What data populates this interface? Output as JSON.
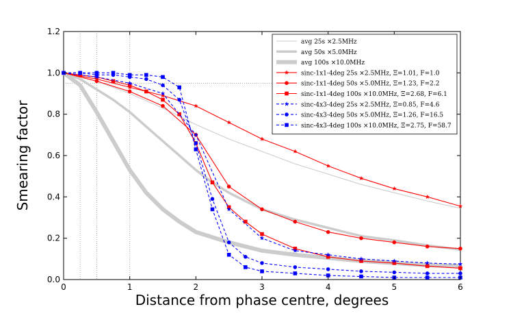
{
  "chart_data": {
    "type": "line",
    "title": "",
    "xlabel": "Distance from phase centre, degrees",
    "ylabel": "Smearing factor",
    "xlim": [
      0,
      6
    ],
    "ylim": [
      0,
      1.2
    ],
    "xticks": [
      "0",
      "1",
      "2",
      "3",
      "4",
      "5",
      "6"
    ],
    "yticks": [
      "0.0",
      "0.2",
      "0.4",
      "0.6",
      "0.8",
      "1.0",
      "1.2"
    ],
    "reference_lines": {
      "vertical_x": [
        0.25,
        0.5,
        1.0
      ],
      "horizontal_y": 0.95
    },
    "legend_position": "top-right",
    "series": [
      {
        "name": "avg 25s ×2.5MHz",
        "color": "#cccccc",
        "style": "solid",
        "marker": "none",
        "width": "thin",
        "x": [
          0,
          0.5,
          1,
          1.5,
          2,
          2.5,
          3,
          3.5,
          4,
          4.5,
          5,
          5.5,
          6
        ],
        "y": [
          1.0,
          0.96,
          0.9,
          0.83,
          0.75,
          0.68,
          0.62,
          0.56,
          0.51,
          0.46,
          0.42,
          0.38,
          0.345
        ]
      },
      {
        "name": "avg 50s ×5.0MHz",
        "color": "#cccccc",
        "style": "solid",
        "marker": "none",
        "width": "medium",
        "x": [
          0,
          0.25,
          0.5,
          0.75,
          1,
          1.25,
          1.5,
          1.75,
          2,
          2.25,
          2.5,
          2.75,
          3,
          3.5,
          4,
          4.5,
          5,
          5.5,
          6
        ],
        "y": [
          1.0,
          0.97,
          0.92,
          0.87,
          0.81,
          0.74,
          0.67,
          0.6,
          0.53,
          0.47,
          0.42,
          0.38,
          0.34,
          0.29,
          0.25,
          0.21,
          0.19,
          0.165,
          0.145
        ]
      },
      {
        "name": "avg 100s ×10.0MHz",
        "color": "#cccccc",
        "style": "solid",
        "marker": "none",
        "width": "thick",
        "x": [
          0,
          0.25,
          0.5,
          0.75,
          1,
          1.25,
          1.5,
          1.75,
          2,
          2.5,
          3,
          3.5,
          4,
          4.5,
          5,
          5.5,
          6
        ],
        "y": [
          1.0,
          0.94,
          0.81,
          0.67,
          0.53,
          0.42,
          0.34,
          0.28,
          0.23,
          0.18,
          0.14,
          0.12,
          0.105,
          0.09,
          0.08,
          0.07,
          0.065
        ]
      },
      {
        "name": "sinc-1x1-4deg 25s ×2.5MHz,  Ξ=1.01,  F=1.0",
        "color": "#ff0000",
        "style": "solid",
        "marker": "star",
        "width": "thin",
        "x": [
          0,
          0.5,
          1,
          1.5,
          2,
          2.5,
          3,
          3.5,
          4,
          4.5,
          5,
          5.5,
          6
        ],
        "y": [
          1.0,
          0.97,
          0.93,
          0.89,
          0.84,
          0.76,
          0.68,
          0.62,
          0.55,
          0.49,
          0.44,
          0.4,
          0.355
        ]
      },
      {
        "name": "sinc-1x1-4deg 50s ×5.0MHz,  Ξ=1.23,  F=2.2",
        "color": "#ff0000",
        "style": "solid",
        "marker": "circle",
        "width": "thin",
        "x": [
          0,
          0.5,
          1,
          1.5,
          2,
          2.5,
          3,
          3.5,
          4,
          4.5,
          5,
          5.5,
          6
        ],
        "y": [
          1.0,
          0.96,
          0.91,
          0.84,
          0.7,
          0.45,
          0.34,
          0.28,
          0.23,
          0.2,
          0.18,
          0.16,
          0.15
        ]
      },
      {
        "name": "sinc-1x1-4deg 100s ×10.0MHz,  Ξ=2.68,  F=6.1",
        "color": "#ff0000",
        "style": "solid",
        "marker": "square",
        "width": "thin",
        "x": [
          0,
          0.25,
          0.5,
          0.75,
          1,
          1.25,
          1.5,
          1.75,
          2,
          2.25,
          2.5,
          2.75,
          3,
          3.5,
          4,
          4.5,
          5,
          5.5,
          6
        ],
        "y": [
          1.0,
          0.99,
          0.98,
          0.96,
          0.94,
          0.91,
          0.87,
          0.8,
          0.66,
          0.47,
          0.35,
          0.28,
          0.22,
          0.15,
          0.11,
          0.09,
          0.08,
          0.065,
          0.055
        ]
      },
      {
        "name": "sinc-4x3-4deg 25s ×2.5MHz,  Ξ=0.85,  F=4.6",
        "color": "#0000ff",
        "style": "dashed",
        "marker": "star",
        "width": "thin",
        "x": [
          0,
          0.5,
          1,
          1.5,
          2,
          2.5,
          3,
          3.5,
          4,
          4.5,
          5,
          5.5,
          6
        ],
        "y": [
          1.0,
          0.98,
          0.95,
          0.9,
          0.7,
          0.34,
          0.2,
          0.14,
          0.12,
          0.1,
          0.09,
          0.08,
          0.075
        ]
      },
      {
        "name": "sinc-4x3-4deg 50s ×5.0MHz,  Ξ=1.26,  F=16.5",
        "color": "#0000ff",
        "style": "dashed",
        "marker": "circle",
        "width": "thin",
        "x": [
          0,
          0.25,
          0.5,
          0.75,
          1,
          1.25,
          1.5,
          1.75,
          2,
          2.25,
          2.5,
          2.75,
          3,
          3.5,
          4,
          4.5,
          5,
          5.5,
          6
        ],
        "y": [
          1.0,
          1.0,
          0.99,
          0.99,
          0.98,
          0.97,
          0.94,
          0.87,
          0.66,
          0.39,
          0.18,
          0.11,
          0.08,
          0.06,
          0.05,
          0.04,
          0.035,
          0.03,
          0.03
        ]
      },
      {
        "name": "sinc-4x3-4deg 100s ×10.0MHz,  Ξ=2.75,  F=58.7",
        "color": "#0000ff",
        "style": "dashed",
        "marker": "square",
        "width": "thin",
        "x": [
          0,
          0.25,
          0.5,
          0.75,
          1,
          1.25,
          1.5,
          1.75,
          2,
          2.25,
          2.5,
          2.75,
          3,
          3.5,
          4,
          4.5,
          5,
          5.5,
          6
        ],
        "y": [
          1.0,
          1.0,
          1.0,
          1.0,
          0.99,
          0.99,
          0.98,
          0.93,
          0.63,
          0.34,
          0.12,
          0.06,
          0.04,
          0.03,
          0.02,
          0.015,
          0.01,
          0.01,
          0.01
        ]
      }
    ]
  }
}
